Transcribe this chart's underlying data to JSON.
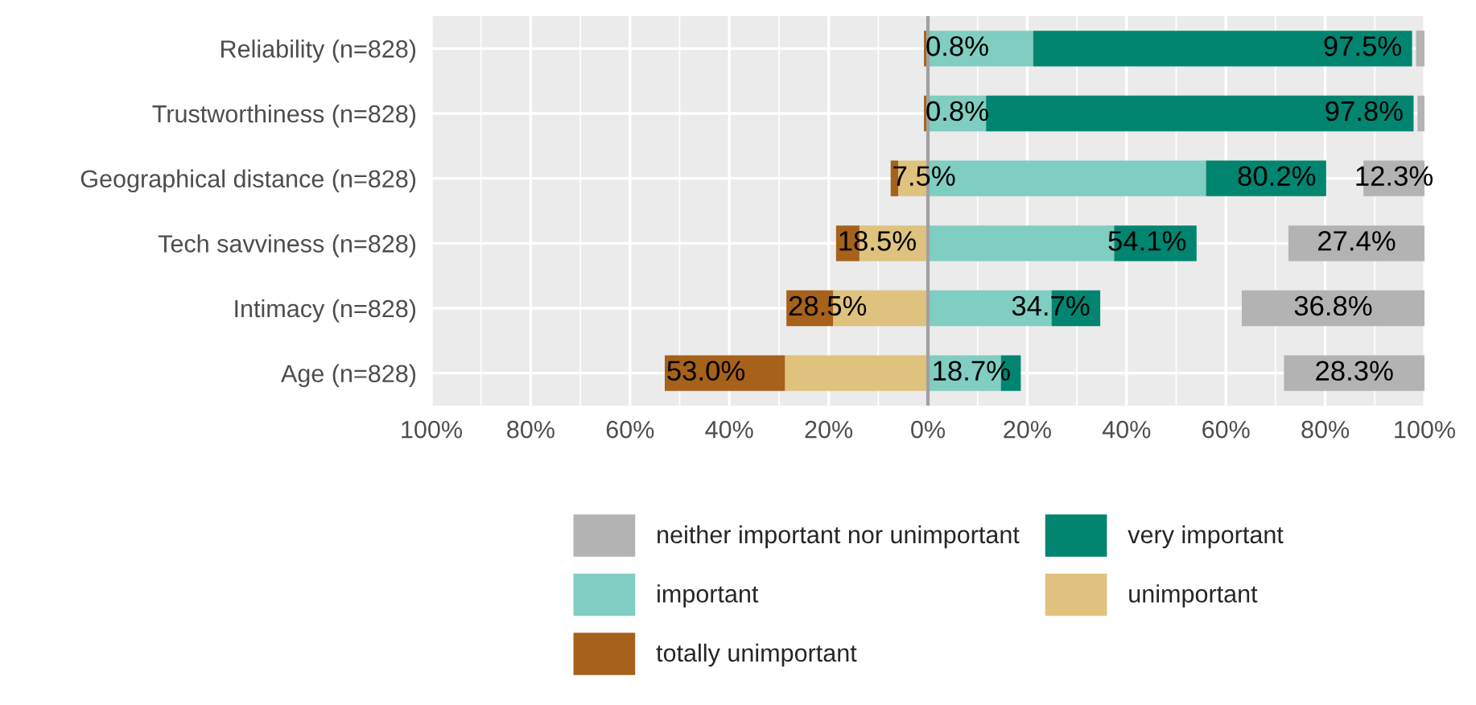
{
  "chart_data": {
    "type": "bar",
    "orientation": "horizontal",
    "categories": [
      "Reliability (n=828)",
      "Trustworthiness (n=828)",
      "Geographical distance (n=828)",
      "Tech savviness (n=828)",
      "Intimacy (n=828)",
      "Age (n=828)"
    ],
    "series": [
      {
        "name": "important",
        "color": "#80cdc1",
        "values": [
          21.2,
          11.7,
          56.0,
          37.5,
          24.9,
          14.7
        ],
        "base": [
          0,
          0,
          0,
          0,
          0,
          0
        ]
      },
      {
        "name": "very important",
        "color": "#018571",
        "values": [
          76.3,
          86.1,
          24.2,
          16.6,
          9.8,
          4.0
        ],
        "base": [
          21.2,
          11.7,
          56.0,
          37.5,
          24.9,
          14.7
        ]
      },
      {
        "name": "unimportant",
        "color": "#dfc27d",
        "values": [
          null,
          null,
          -6.0,
          -13.8,
          -19.1,
          -28.8
        ],
        "base": [
          null,
          null,
          0,
          0,
          0,
          0
        ]
      },
      {
        "name": "totally unimportant",
        "color": "#a6611a",
        "values": [
          -0.8,
          -0.8,
          -1.5,
          -4.7,
          -9.4,
          -24.2
        ],
        "base": [
          0,
          0,
          -6.0,
          -13.8,
          -19.1,
          -28.8
        ]
      },
      {
        "name": "neither important nor unimportant",
        "color": "#b3b3b3",
        "values": [
          1.7,
          1.4,
          12.3,
          27.4,
          36.8,
          28.3
        ],
        "base": [
          98.3,
          98.6,
          87.7,
          72.6,
          63.2,
          71.7
        ],
        "value_labels": [
          null,
          null,
          "12.3%",
          "27.4%",
          "36.8%",
          "28.3%"
        ]
      }
    ],
    "annotations": [
      {
        "text": "0.8%",
        "x": -0.8,
        "y": "Reliability (n=828)"
      },
      {
        "text": "97.5%",
        "x": 97.5,
        "y": "Reliability (n=828)"
      },
      {
        "text": "0.8%",
        "x": -0.8,
        "y": "Trustworthiness (n=828)"
      },
      {
        "text": "97.8%",
        "x": 97.8,
        "y": "Trustworthiness (n=828)"
      },
      {
        "text": "7.5%",
        "x": -7.5,
        "y": "Geographical distance (n=828)"
      },
      {
        "text": "80.2%",
        "x": 80.2,
        "y": "Geographical distance (n=828)"
      },
      {
        "text": "18.5%",
        "x": -18.5,
        "y": "Tech savviness (n=828)"
      },
      {
        "text": "54.1%",
        "x": 54.1,
        "y": "Tech savviness (n=828)"
      },
      {
        "text": "28.5%",
        "x": -28.5,
        "y": "Intimacy (n=828)"
      },
      {
        "text": "34.7%",
        "x": 34.7,
        "y": "Intimacy (n=828)"
      },
      {
        "text": "53.0%",
        "x": -53.0,
        "y": "Age (n=828)"
      },
      {
        "text": "18.7%",
        "x": 18.7,
        "y": "Age (n=828)"
      }
    ],
    "xlim": [
      -100,
      100
    ],
    "xticks": [
      {
        "value": -100,
        "label": "100%"
      },
      {
        "value": -80,
        "label": "80%"
      },
      {
        "value": -60,
        "label": "60%"
      },
      {
        "value": -40,
        "label": "40%"
      },
      {
        "value": -20,
        "label": "20%"
      },
      {
        "value": 0,
        "label": "0%"
      },
      {
        "value": 20,
        "label": "20%"
      },
      {
        "value": 40,
        "label": "40%"
      },
      {
        "value": 60,
        "label": "60%"
      },
      {
        "value": 80,
        "label": "80%"
      },
      {
        "value": 100,
        "label": "100%"
      }
    ],
    "ref_lines": [
      {
        "axis": "x",
        "value": 0,
        "label": null,
        "color": "#a0a0a0"
      }
    ],
    "grid": true,
    "legend": "bottom"
  }
}
